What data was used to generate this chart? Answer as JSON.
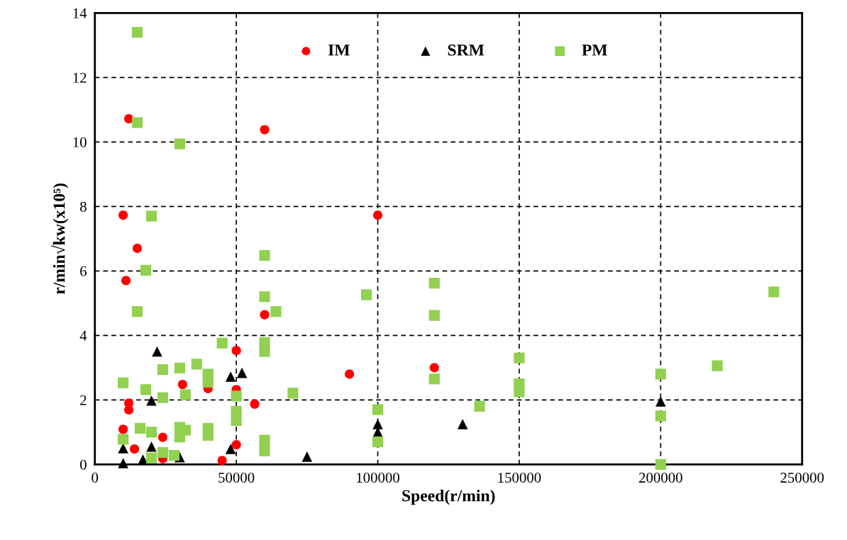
{
  "chart_data": {
    "type": "scatter",
    "xlabel": "Speed(r/min)",
    "ylabel": "r/min√kw(x10⁵)",
    "xlim": [
      0,
      250000
    ],
    "xticks": [
      0,
      50000,
      100000,
      150000,
      200000,
      250000
    ],
    "ylim": [
      0,
      14
    ],
    "yticks": [
      0,
      2,
      4,
      6,
      8,
      10,
      12,
      14
    ],
    "grid": true,
    "legend": "top",
    "series": [
      {
        "name": "IM",
        "color": "#ff0000",
        "marker": "circle",
        "x": [
          12000,
          60000,
          10000,
          15000,
          11000,
          60000,
          100000,
          90000,
          120000,
          50000,
          40000,
          31000,
          50000,
          56500,
          12000,
          12000,
          10000,
          24000,
          14000,
          24000,
          50000,
          45000
        ],
        "values": [
          10.72,
          10.38,
          7.73,
          6.7,
          5.7,
          4.64,
          7.73,
          2.8,
          3.0,
          3.53,
          2.35,
          2.48,
          2.32,
          1.87,
          1.9,
          1.69,
          1.09,
          0.84,
          0.48,
          0.18,
          0.61,
          0.12
        ]
      },
      {
        "name": "SRM",
        "color": "#000000",
        "marker": "triangle",
        "x": [
          22000,
          48000,
          52000,
          20000,
          100000,
          100000,
          130000,
          200000,
          10000,
          20000,
          48000,
          75000,
          30000,
          17000,
          10000
        ],
        "values": [
          3.5,
          2.72,
          2.84,
          1.98,
          1.25,
          1.0,
          1.25,
          1.95,
          0.5,
          0.55,
          0.48,
          0.24,
          0.22,
          0.15,
          0.04
        ]
      },
      {
        "name": "PM",
        "color": "#92d050",
        "marker": "square",
        "x": [
          15000,
          15000,
          30000,
          20000,
          18000,
          60000,
          60000,
          96000,
          64000,
          15000,
          120000,
          120000,
          240000,
          45000,
          60000,
          60000,
          150000,
          150000,
          150000,
          120000,
          200000,
          220000,
          200000,
          200000,
          100000,
          100000,
          136000,
          70000,
          50000,
          50000,
          50000,
          60000,
          60000,
          24000,
          30000,
          36000,
          40000,
          40000,
          32000,
          24000,
          10000,
          18000,
          16000,
          20000,
          30000,
          30000,
          32000,
          40000,
          40000,
          10000,
          24000,
          20000,
          28000
        ],
        "values": [
          13.4,
          10.6,
          9.94,
          7.7,
          6.02,
          6.48,
          5.2,
          5.26,
          4.74,
          4.74,
          5.62,
          4.62,
          5.35,
          3.76,
          3.78,
          3.5,
          3.3,
          2.5,
          2.25,
          2.65,
          2.8,
          3.06,
          1.5,
          0.0,
          1.7,
          0.7,
          1.8,
          2.21,
          2.12,
          1.65,
          1.36,
          0.75,
          0.42,
          2.94,
          2.99,
          3.11,
          2.8,
          2.55,
          2.16,
          2.07,
          2.53,
          2.32,
          1.12,
          1.0,
          1.15,
          0.85,
          1.06,
          1.12,
          0.9,
          0.78,
          0.37,
          0.2,
          0.28
        ]
      }
    ]
  }
}
